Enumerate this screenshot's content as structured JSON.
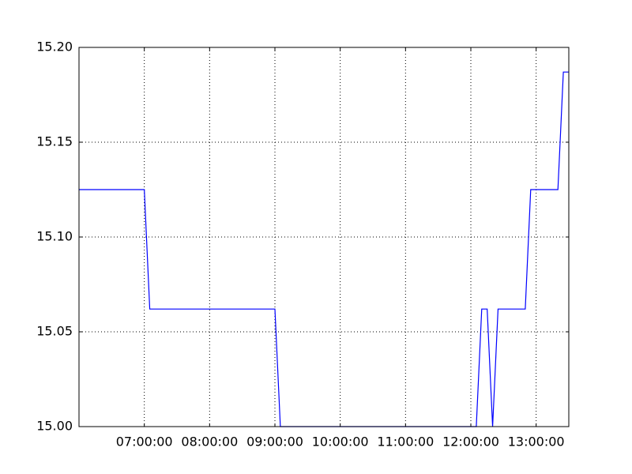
{
  "chart_data": {
    "type": "line",
    "title": "",
    "xlabel": "",
    "ylabel": "",
    "grid": true,
    "xlim": [
      "06:00:00",
      "13:30:00"
    ],
    "ylim": [
      15.0,
      15.2
    ],
    "x_ticks": [
      "07:00:00",
      "08:00:00",
      "09:00:00",
      "10:00:00",
      "11:00:00",
      "12:00:00",
      "13:00:00"
    ],
    "y_ticks": [
      "15.00",
      "15.05",
      "15.10",
      "15.15",
      "15.20"
    ],
    "series": [
      {
        "color": "#0000ff",
        "x": [
          "06:00:00",
          "07:00:00",
          "07:05:00",
          "09:00:00",
          "09:05:00",
          "12:05:00",
          "12:10:00",
          "12:15:00",
          "12:20:00",
          "12:25:00",
          "12:50:00",
          "12:55:00",
          "13:20:00",
          "13:25:00",
          "13:30:00"
        ],
        "y": [
          15.125,
          15.125,
          15.062,
          15.062,
          15.0,
          15.0,
          15.062,
          15.062,
          15.0,
          15.062,
          15.062,
          15.125,
          15.125,
          15.187,
          15.187
        ]
      }
    ]
  }
}
